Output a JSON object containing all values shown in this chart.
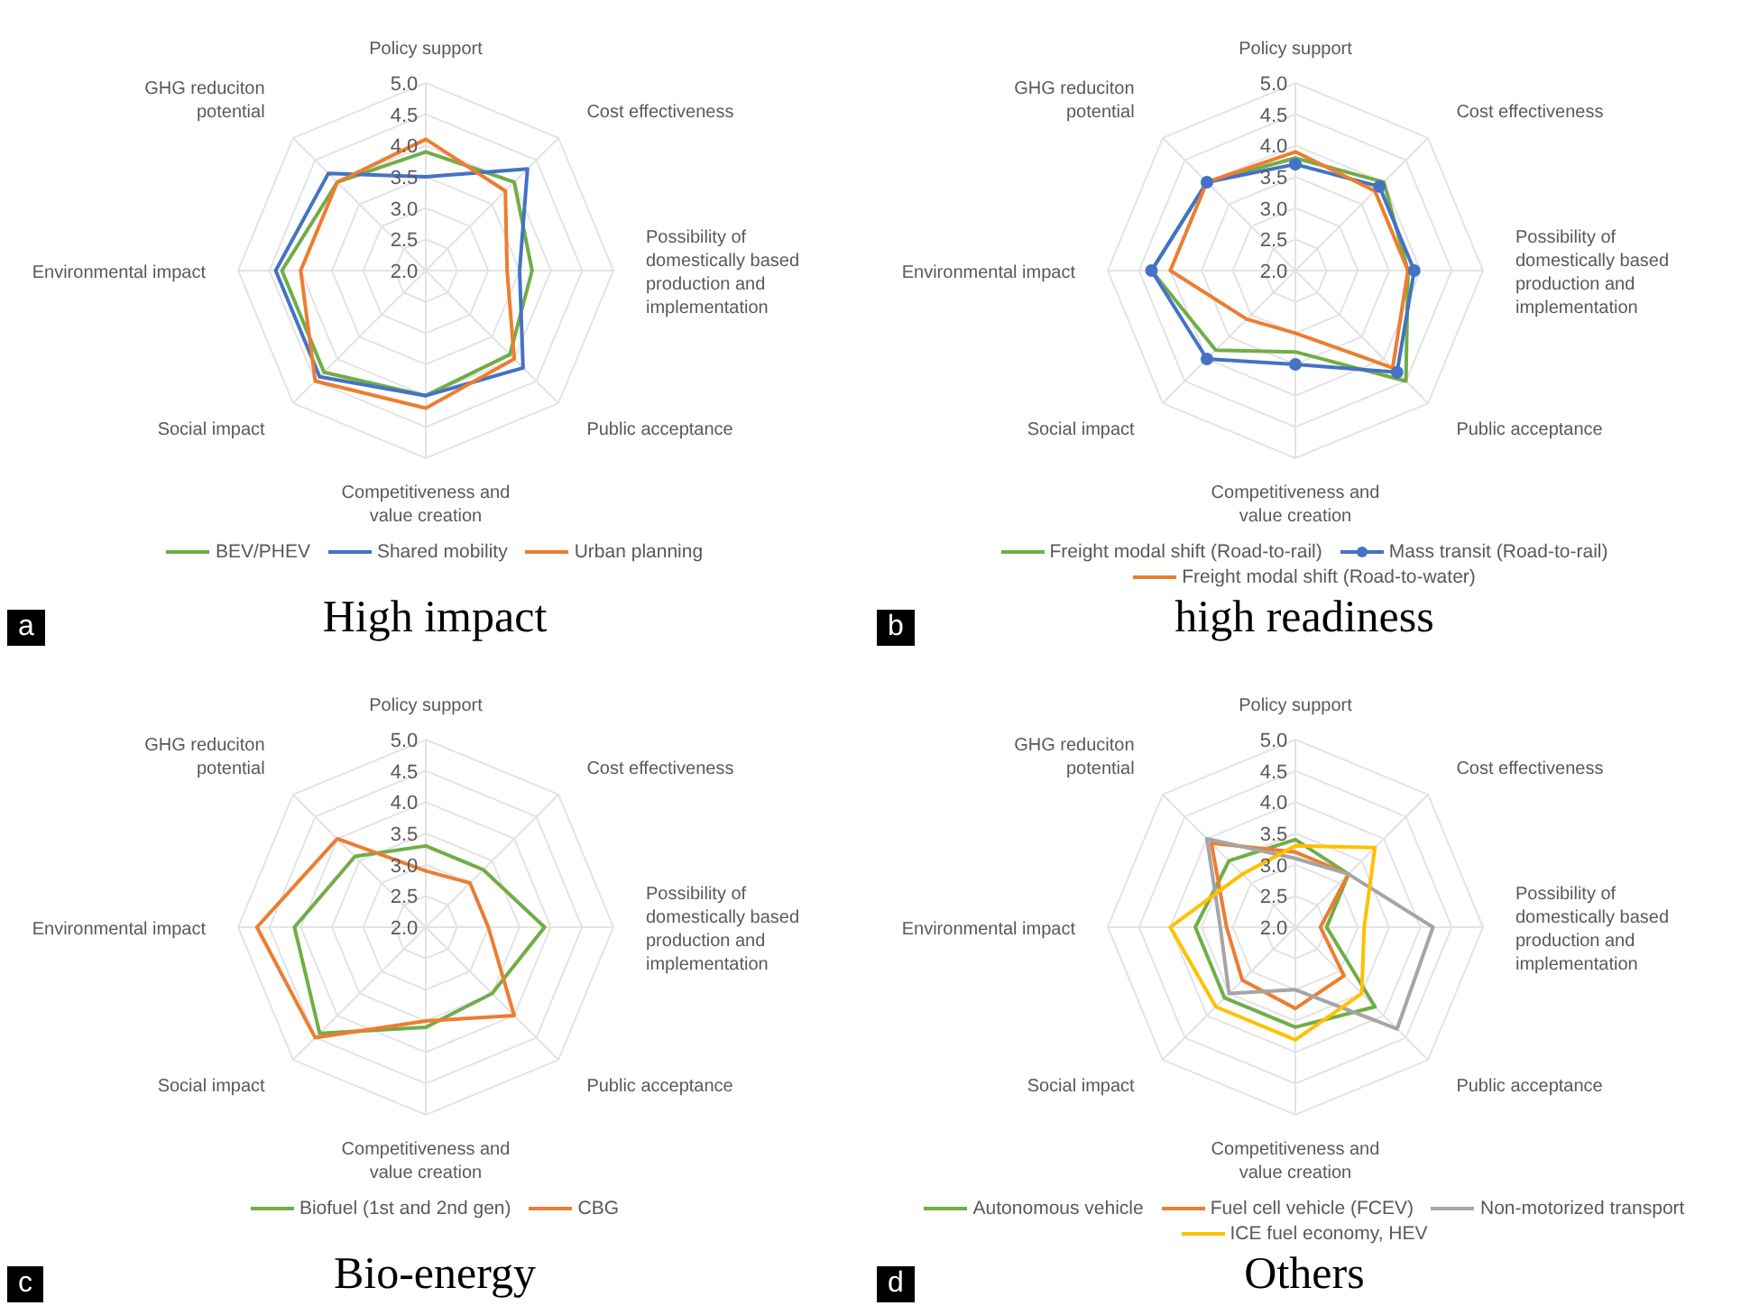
{
  "chart_data": [
    {
      "type": "radar",
      "title": "High impact",
      "annotations": [
        "a"
      ],
      "categories": [
        "Policy support",
        "Cost effectiveness",
        "Possibility of domestically based production and implementation",
        "Public acceptance",
        "Competitiveness and value creation",
        "Social impact",
        "Environmental impact",
        "GHG reduciton potential"
      ],
      "ylim": [
        2,
        5
      ],
      "yticks": [
        {
          "value": 2,
          "label": "2.0"
        },
        {
          "value": 2.5,
          "label": "2.5"
        },
        {
          "value": 3,
          "label": "3.0"
        },
        {
          "value": 3.5,
          "label": "3.5"
        },
        {
          "value": 4,
          "label": "4.0"
        },
        {
          "value": 4.5,
          "label": "4.5"
        },
        {
          "value": 5,
          "label": "5.0"
        }
      ],
      "grid": true,
      "legend": "bottom",
      "marker": "none",
      "series": [
        {
          "name": "BEV/PHEV",
          "color": "#70ad47",
          "values": [
            3.9,
            4.0,
            3.7,
            3.9,
            4.0,
            4.3,
            4.3,
            4.0
          ]
        },
        {
          "name": "Shared mobility",
          "color": "#4472c4",
          "values": [
            3.5,
            4.3,
            3.5,
            4.2,
            4.0,
            4.4,
            4.4,
            4.2
          ]
        },
        {
          "name": "Urban planning",
          "color": "#ed7d31",
          "values": [
            4.1,
            3.8,
            3.3,
            4.0,
            4.2,
            4.5,
            4.0,
            4.0
          ]
        }
      ]
    },
    {
      "type": "radar",
      "title": "high readiness",
      "annotations": [
        "b"
      ],
      "categories": [
        "Policy support",
        "Cost effectiveness",
        "Possibility of domestically based production and implementation",
        "Public acceptance",
        "Competitiveness and value creation",
        "Social impact",
        "Environmental impact",
        "GHG reduciton potential"
      ],
      "ylim": [
        2,
        5
      ],
      "yticks": [
        {
          "value": 2,
          "label": "2.0"
        },
        {
          "value": 2.5,
          "label": "2.5"
        },
        {
          "value": 3,
          "label": "3.0"
        },
        {
          "value": 3.5,
          "label": "3.5"
        },
        {
          "value": 4,
          "label": "4.0"
        },
        {
          "value": 4.5,
          "label": "4.5"
        },
        {
          "value": 5,
          "label": "5.0"
        }
      ],
      "grid": true,
      "legend": "bottom",
      "marker": "none",
      "series": [
        {
          "name": "Freight modal shift (Road-to-rail)",
          "color": "#70ad47",
          "values": [
            3.8,
            4.0,
            3.8,
            4.5,
            3.3,
            3.8,
            4.3,
            4.0
          ]
        },
        {
          "name": "Mass transit (Road-to-rail)",
          "color": "#4472c4",
          "marker": "circle",
          "values": [
            3.7,
            3.9,
            3.9,
            4.3,
            3.5,
            4.0,
            4.3,
            4.0
          ]
        },
        {
          "name": "Freight modal shift (Road-to-water)",
          "color": "#ed7d31",
          "values": [
            3.9,
            3.8,
            3.8,
            4.2,
            3.0,
            3.1,
            4.0,
            4.0
          ]
        }
      ]
    },
    {
      "type": "radar",
      "title": "Bio-energy",
      "annotations": [
        "c"
      ],
      "categories": [
        "Policy support",
        "Cost effectiveness",
        "Possibility of domestically based production and implementation",
        "Public acceptance",
        "Competitiveness and value creation",
        "Social impact",
        "Environmental impact",
        "GHG reduciton potential"
      ],
      "ylim": [
        2,
        5
      ],
      "yticks": [
        {
          "value": 2,
          "label": "2.0"
        },
        {
          "value": 2.5,
          "label": "2.5"
        },
        {
          "value": 3,
          "label": "3.0"
        },
        {
          "value": 3.5,
          "label": "3.5"
        },
        {
          "value": 4,
          "label": "4.0"
        },
        {
          "value": 4.5,
          "label": "4.5"
        },
        {
          "value": 5,
          "label": "5.0"
        }
      ],
      "grid": true,
      "legend": "bottom",
      "marker": "none",
      "series": [
        {
          "name": "Biofuel (1st and 2nd gen)",
          "color": "#70ad47",
          "values": [
            3.3,
            3.3,
            3.9,
            3.5,
            3.6,
            4.4,
            4.1,
            3.6
          ]
        },
        {
          "name": "CBG",
          "color": "#ed7d31",
          "values": [
            2.9,
            3.0,
            3.0,
            4.0,
            3.5,
            4.5,
            4.7,
            4.0
          ]
        }
      ]
    },
    {
      "type": "radar",
      "title": "Others",
      "annotations": [
        "d"
      ],
      "categories": [
        "Policy support",
        "Cost effectiveness",
        "Possibility of domestically based production and implementation",
        "Public acceptance",
        "Competitiveness and value creation",
        "Social impact",
        "Environmental impact",
        "GHG reduciton potential"
      ],
      "ylim": [
        2,
        5
      ],
      "yticks": [
        {
          "value": 2,
          "label": "2.0"
        },
        {
          "value": 2.5,
          "label": "2.5"
        },
        {
          "value": 3,
          "label": "3.0"
        },
        {
          "value": 3.5,
          "label": "3.5"
        },
        {
          "value": 4,
          "label": "4.0"
        },
        {
          "value": 4.5,
          "label": "4.5"
        },
        {
          "value": 5,
          "label": "5.0"
        }
      ],
      "grid": true,
      "legend": "bottom",
      "marker": "none",
      "series": [
        {
          "name": "Autonomous vehicle",
          "color": "#70ad47",
          "values": [
            3.4,
            3.2,
            2.5,
            3.8,
            3.6,
            3.6,
            3.6,
            3.5
          ]
        },
        {
          "name": "Fuel cell vehicle (FCEV)",
          "color": "#ed7d31",
          "values": [
            3.2,
            3.2,
            2.4,
            3.1,
            3.3,
            3.2,
            3.1,
            3.9
          ]
        },
        {
          "name": "Non-motorized transport",
          "color": "#a5a5a5",
          "values": [
            3.1,
            3.2,
            4.2,
            4.3,
            3.0,
            3.5,
            3.2,
            4.0
          ]
        },
        {
          "name": "ICE fuel economy, HEV",
          "color": "#ffc000",
          "values": [
            3.3,
            3.8,
            3.1,
            3.5,
            3.8,
            3.8,
            4.0,
            3.2
          ]
        }
      ]
    }
  ]
}
